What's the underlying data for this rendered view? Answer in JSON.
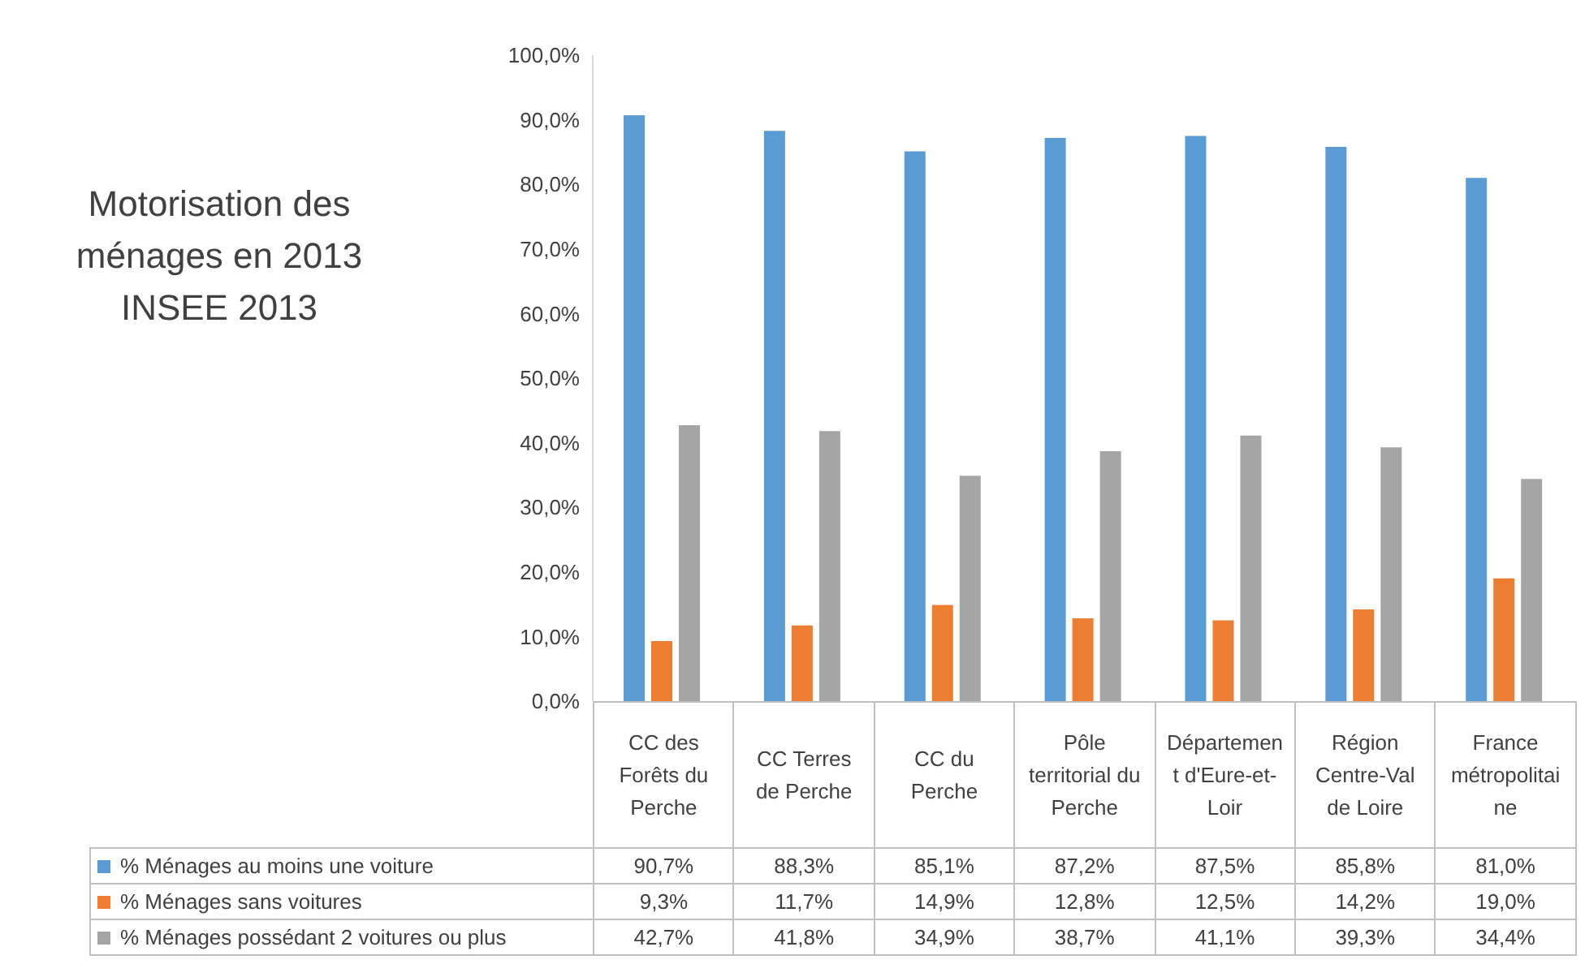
{
  "chart_data": {
    "type": "bar",
    "title": "Motorisation des ménages en 2013\nINSEE 2013",
    "categories": [
      "CC des Forêts du Perche",
      "CC Terres de Perche",
      "CC du Perche",
      "Pôle territorial du Perche",
      "Département d'Eure-et-Loir",
      "Région Centre-Val de Loire",
      "France métropolitaine"
    ],
    "series": [
      {
        "name": "% Ménages au moins une voiture",
        "color": "#5b9bd5",
        "values": [
          90.7,
          88.3,
          85.1,
          87.2,
          87.5,
          85.8,
          81.0
        ],
        "value_labels": [
          "90,7%",
          "88,3%",
          "85,1%",
          "87,2%",
          "87,5%",
          "85,8%",
          "81,0%"
        ]
      },
      {
        "name": "% Ménages sans voitures",
        "color": "#ed7d31",
        "values": [
          9.3,
          11.7,
          14.9,
          12.8,
          12.5,
          14.2,
          19.0
        ],
        "value_labels": [
          "9,3%",
          "11,7%",
          "14,9%",
          "12,8%",
          "12,5%",
          "14,2%",
          "19,0%"
        ]
      },
      {
        "name": "% Ménages possédant 2 voitures ou plus",
        "color": "#a5a5a5",
        "values": [
          42.7,
          41.8,
          34.9,
          38.7,
          41.1,
          39.3,
          34.4
        ],
        "value_labels": [
          "42,7%",
          "41,8%",
          "34,9%",
          "38,7%",
          "41,1%",
          "39,3%",
          "34,4%"
        ]
      }
    ],
    "ylim": [
      0,
      100
    ],
    "yticks": [
      {
        "value": 0,
        "label": "0,0%"
      },
      {
        "value": 10,
        "label": "10,0%"
      },
      {
        "value": 20,
        "label": "20,0%"
      },
      {
        "value": 30,
        "label": "30,0%"
      },
      {
        "value": 40,
        "label": "40,0%"
      },
      {
        "value": 50,
        "label": "50,0%"
      },
      {
        "value": 60,
        "label": "60,0%"
      },
      {
        "value": 70,
        "label": "70,0%"
      },
      {
        "value": 80,
        "label": "80,0%"
      },
      {
        "value": 90,
        "label": "90,0%"
      },
      {
        "value": 100,
        "label": "100,0%"
      }
    ],
    "legend": "bottom"
  }
}
